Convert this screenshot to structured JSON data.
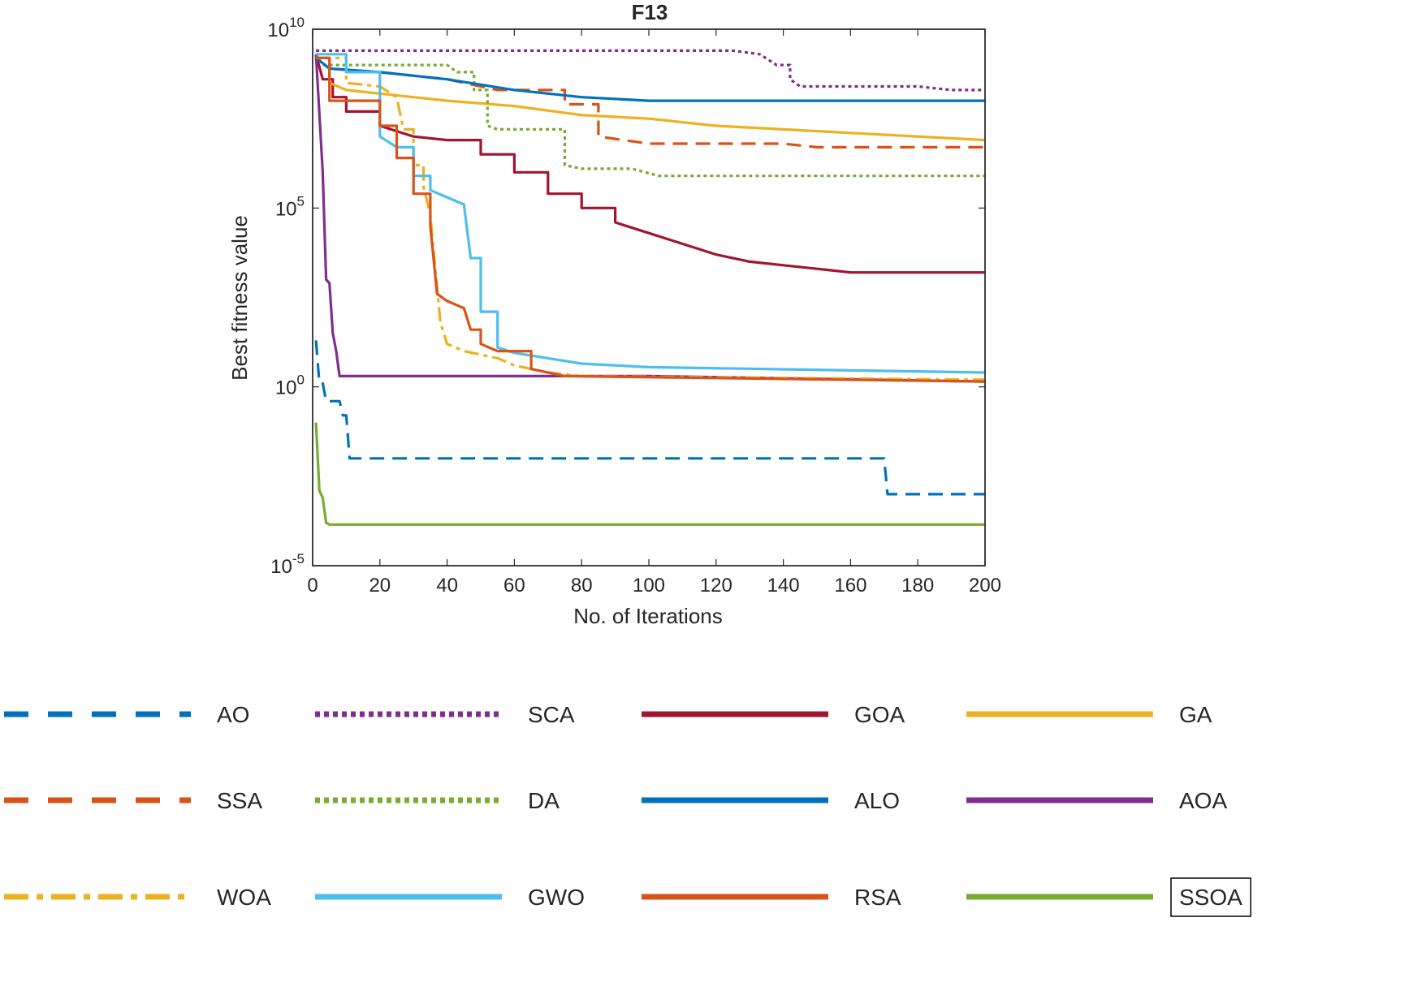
{
  "chart_data": {
    "type": "line",
    "title": "F13",
    "xlabel": "No. of Iterations",
    "ylabel": "Best fitness value",
    "xlim": [
      0,
      200
    ],
    "ylim_log10": [
      -5,
      10
    ],
    "yscale": "log",
    "x_ticks": [
      "0",
      "20",
      "40",
      "60",
      "80",
      "100",
      "120",
      "140",
      "160",
      "180",
      "200"
    ],
    "y_ticks": [
      {
        "base": "10",
        "exp": "-5"
      },
      {
        "base": "10",
        "exp": "0"
      },
      {
        "base": "10",
        "exp": "5"
      },
      {
        "base": "10",
        "exp": "10"
      }
    ],
    "series": [
      {
        "name": "AO",
        "color": "#0072bd",
        "style": "dashed",
        "log10_points": [
          [
            1,
            1.3
          ],
          [
            2,
            0.1
          ],
          [
            3,
            0.1
          ],
          [
            4,
            -0.4
          ],
          [
            8,
            -0.4
          ],
          [
            9,
            -0.8
          ],
          [
            10,
            -0.8
          ],
          [
            11,
            -2.0
          ],
          [
            170,
            -2.0
          ],
          [
            171,
            -3.0
          ],
          [
            200,
            -3.0
          ]
        ]
      },
      {
        "name": "SCA",
        "color": "#7e2f8e",
        "style": "dotted",
        "log10_points": [
          [
            1,
            9.4
          ],
          [
            125,
            9.4
          ],
          [
            133,
            9.3
          ],
          [
            138,
            9.0
          ],
          [
            142,
            8.6
          ],
          [
            145,
            8.4
          ],
          [
            180,
            8.4
          ],
          [
            190,
            8.3
          ],
          [
            200,
            8.3
          ]
        ]
      },
      {
        "name": "GOA",
        "color": "#a2142f",
        "style": "solid",
        "log10_points": [
          [
            1,
            9.3
          ],
          [
            3,
            8.6
          ],
          [
            6,
            8.1
          ],
          [
            10,
            7.7
          ],
          [
            20,
            7.3
          ],
          [
            30,
            7.0
          ],
          [
            40,
            6.9
          ],
          [
            50,
            6.5
          ],
          [
            60,
            6.0
          ],
          [
            70,
            5.4
          ],
          [
            80,
            5.0
          ],
          [
            90,
            4.6
          ],
          [
            100,
            4.3
          ],
          [
            110,
            4.0
          ],
          [
            120,
            3.7
          ],
          [
            130,
            3.5
          ],
          [
            140,
            3.4
          ],
          [
            150,
            3.3
          ],
          [
            160,
            3.2
          ],
          [
            170,
            3.2
          ],
          [
            200,
            3.2
          ]
        ]
      },
      {
        "name": "GA",
        "color": "#edb120",
        "style": "solid",
        "log10_points": [
          [
            1,
            9.2
          ],
          [
            5,
            8.5
          ],
          [
            10,
            8.3
          ],
          [
            20,
            8.2
          ],
          [
            40,
            8.0
          ],
          [
            60,
            7.85
          ],
          [
            80,
            7.6
          ],
          [
            100,
            7.5
          ],
          [
            120,
            7.3
          ],
          [
            140,
            7.2
          ],
          [
            160,
            7.1
          ],
          [
            180,
            7.0
          ],
          [
            200,
            6.9
          ]
        ]
      },
      {
        "name": "SSA",
        "color": "#d95319",
        "style": "dashed",
        "log10_points": [
          [
            1,
            9.2
          ],
          [
            5,
            8.9
          ],
          [
            20,
            8.8
          ],
          [
            40,
            8.6
          ],
          [
            55,
            8.3
          ],
          [
            75,
            7.9
          ],
          [
            85,
            7.0
          ],
          [
            100,
            6.8
          ],
          [
            140,
            6.8
          ],
          [
            150,
            6.7
          ],
          [
            200,
            6.7
          ]
        ]
      },
      {
        "name": "DA",
        "color": "#77ac30",
        "style": "dotted",
        "log10_points": [
          [
            1,
            9.3
          ],
          [
            3,
            9.0
          ],
          [
            40,
            9.0
          ],
          [
            43,
            8.8
          ],
          [
            48,
            8.3
          ],
          [
            52,
            7.3
          ],
          [
            55,
            7.2
          ],
          [
            70,
            7.2
          ],
          [
            75,
            6.2
          ],
          [
            80,
            6.1
          ],
          [
            95,
            6.1
          ],
          [
            103,
            5.9
          ],
          [
            200,
            5.9
          ]
        ]
      },
      {
        "name": "ALO",
        "color": "#0072bd",
        "style": "solid",
        "log10_points": [
          [
            1,
            9.2
          ],
          [
            5,
            8.9
          ],
          [
            20,
            8.8
          ],
          [
            40,
            8.6
          ],
          [
            60,
            8.3
          ],
          [
            80,
            8.1
          ],
          [
            100,
            8.0
          ],
          [
            200,
            8.0
          ]
        ]
      },
      {
        "name": "AOA",
        "color": "#7e2f8e",
        "style": "solid",
        "log10_points": [
          [
            1,
            9.3
          ],
          [
            3,
            6.0
          ],
          [
            4,
            3.0
          ],
          [
            5,
            2.9
          ],
          [
            6,
            1.5
          ],
          [
            7,
            1.0
          ],
          [
            8,
            0.3
          ],
          [
            100,
            0.3
          ],
          [
            200,
            0.15
          ]
        ]
      },
      {
        "name": "WOA",
        "color": "#edb120",
        "style": "dashdot",
        "log10_points": [
          [
            1,
            9.2
          ],
          [
            10,
            8.5
          ],
          [
            20,
            8.4
          ],
          [
            25,
            8.1
          ],
          [
            27,
            7.2
          ],
          [
            30,
            6.2
          ],
          [
            33,
            5.6
          ],
          [
            35,
            4.8
          ],
          [
            36,
            3.8
          ],
          [
            38,
            1.8
          ],
          [
            40,
            1.2
          ],
          [
            45,
            1.0
          ],
          [
            55,
            0.8
          ],
          [
            60,
            0.6
          ],
          [
            70,
            0.4
          ],
          [
            80,
            0.3
          ],
          [
            200,
            0.2
          ]
        ]
      },
      {
        "name": "GWO",
        "color": "#4dbeee",
        "style": "solid",
        "log10_points": [
          [
            1,
            9.3
          ],
          [
            10,
            8.8
          ],
          [
            20,
            7.0
          ],
          [
            25,
            6.7
          ],
          [
            30,
            5.9
          ],
          [
            35,
            5.5
          ],
          [
            40,
            5.3
          ],
          [
            45,
            5.1
          ],
          [
            47,
            3.6
          ],
          [
            50,
            2.1
          ],
          [
            55,
            1.1
          ],
          [
            60,
            0.95
          ],
          [
            70,
            0.8
          ],
          [
            80,
            0.65
          ],
          [
            100,
            0.55
          ],
          [
            200,
            0.4
          ]
        ]
      },
      {
        "name": "RSA",
        "color": "#d95319",
        "style": "solid",
        "log10_points": [
          [
            1,
            9.2
          ],
          [
            5,
            8.0
          ],
          [
            20,
            7.3
          ],
          [
            25,
            6.4
          ],
          [
            30,
            5.4
          ],
          [
            35,
            4.5
          ],
          [
            37,
            2.6
          ],
          [
            40,
            2.4
          ],
          [
            45,
            2.2
          ],
          [
            47,
            1.6
          ],
          [
            50,
            1.2
          ],
          [
            55,
            1.0
          ],
          [
            65,
            0.5
          ],
          [
            75,
            0.3
          ],
          [
            200,
            0.15
          ]
        ]
      },
      {
        "name": "SSOA",
        "color": "#77ac30",
        "style": "solid",
        "log10_points": [
          [
            1,
            -1.0
          ],
          [
            2,
            -2.9
          ],
          [
            3,
            -3.1
          ],
          [
            4,
            -3.8
          ],
          [
            5,
            -3.85
          ],
          [
            200,
            -3.85
          ]
        ]
      }
    ],
    "legend": [
      [
        "AO",
        "SCA",
        "GOA",
        "GA"
      ],
      [
        "SSA",
        "DA",
        "ALO",
        "AOA"
      ],
      [
        "WOA",
        "GWO",
        "RSA",
        "SSOA"
      ]
    ],
    "legend_boxed_entry": "SSOA",
    "grid": false
  }
}
